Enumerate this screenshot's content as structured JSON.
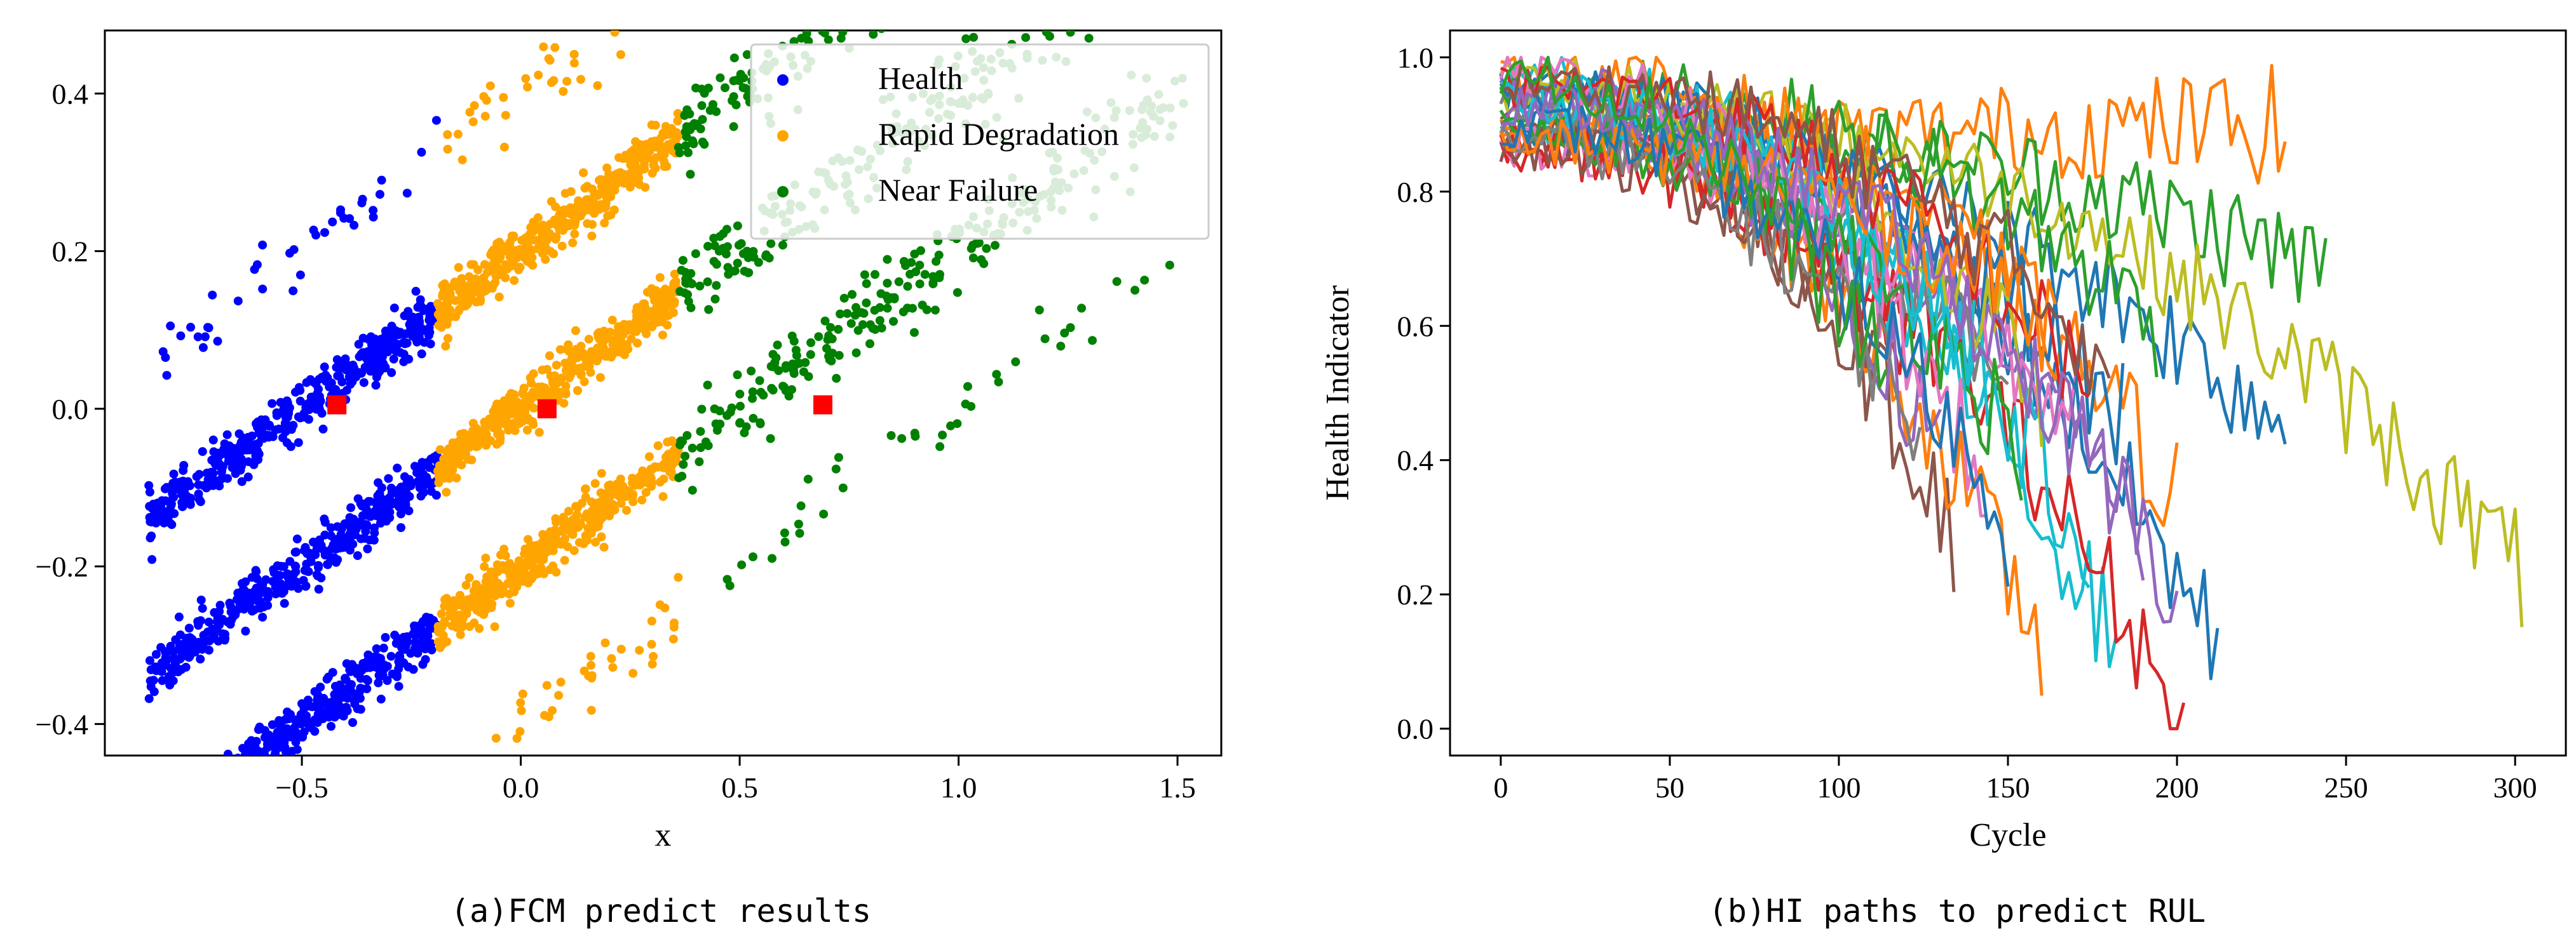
{
  "figure": {
    "captions": [
      "(a)FCM predict results",
      "(b)HI paths to predict RUL"
    ]
  },
  "chart_data": [
    {
      "type": "scatter",
      "xlabel": "x",
      "ylabel": "",
      "xlim": [
        -0.95,
        1.6
      ],
      "ylim": [
        -0.44,
        0.48
      ],
      "xticks": [
        -0.5,
        0.0,
        0.5,
        1.0,
        1.5
      ],
      "yticks": [
        -0.4,
        -0.2,
        0.0,
        0.2,
        0.4
      ],
      "xtick_labels": [
        "−0.5",
        "0.0",
        "0.5",
        "1.0",
        "1.5"
      ],
      "ytick_labels": [
        "−0.4",
        "−0.2",
        "0.0",
        "0.2",
        "0.4"
      ],
      "grid": false,
      "legend": {
        "placement": "top-right"
      },
      "series": [
        {
          "name": "Health",
          "color": "#0000ff",
          "x_range": [
            -0.85,
            -0.19
          ]
        },
        {
          "name": "Rapid Degradation",
          "color": "#ffa500",
          "x_range": [
            -0.19,
            0.36
          ]
        },
        {
          "name": "Near Failure",
          "color": "#008000",
          "x_range": [
            0.36,
            1.52
          ]
        }
      ],
      "stripes": [
        {
          "y_intercept": 0.2,
          "slope": 0.4,
          "spread": 0.012
        },
        {
          "y_intercept": 0.0,
          "slope": 0.4,
          "spread": 0.012
        },
        {
          "y_intercept": -0.2,
          "slope": 0.4,
          "spread": 0.012
        }
      ],
      "centers": {
        "color": "#ff0000",
        "points": [
          {
            "x": -0.42,
            "y": 0.005
          },
          {
            "x": 0.06,
            "y": 0.0
          },
          {
            "x": 0.69,
            "y": 0.005
          }
        ]
      }
    },
    {
      "type": "line",
      "xlabel": "Cycle",
      "ylabel": "Health Indicator",
      "xlim": [
        -15,
        315
      ],
      "ylim": [
        -0.04,
        1.04
      ],
      "xticks": [
        0,
        50,
        100,
        150,
        200,
        250,
        300
      ],
      "yticks": [
        0.0,
        0.2,
        0.4,
        0.6,
        0.8,
        1.0
      ],
      "xtick_labels": [
        "0",
        "50",
        "100",
        "150",
        "200",
        "250",
        "300"
      ],
      "ytick_labels": [
        "0.0",
        "0.2",
        "0.4",
        "0.6",
        "0.8",
        "1.0"
      ],
      "grid": false,
      "palette": [
        "#1f77b4",
        "#ff7f0e",
        "#2ca02c",
        "#d62728",
        "#9467bd",
        "#8c564b",
        "#e377c2",
        "#7f7f7f",
        "#bcbd22",
        "#17becf"
      ],
      "series": [
        {
          "color": "#8c564b",
          "end_cycle": 135,
          "end_hi": 0.28
        },
        {
          "color": "#ff7f0e",
          "end_cycle": 160,
          "end_hi": 0.12
        },
        {
          "color": "#17becf",
          "end_cycle": 182,
          "end_hi": 0.12
        },
        {
          "color": "#d62728",
          "end_cycle": 202,
          "end_hi": 0.0
        },
        {
          "color": "#1f77b4",
          "end_cycle": 212,
          "end_hi": 0.12
        },
        {
          "color": "#1f77b4",
          "end_cycle": 232,
          "end_hi": 0.45
        },
        {
          "color": "#ff7f0e",
          "end_cycle": 232,
          "end_hi": 0.9
        },
        {
          "color": "#2ca02c",
          "end_cycle": 244,
          "end_hi": 0.68
        },
        {
          "color": "#bcbd22",
          "end_cycle": 302,
          "end_hi": 0.23
        },
        {
          "color": "#9467bd",
          "end_cycle": 190,
          "end_hi": 0.3
        },
        {
          "color": "#e377c2",
          "end_cycle": 170,
          "end_hi": 0.45
        },
        {
          "color": "#7f7f7f",
          "end_cycle": 150,
          "end_hi": 0.5
        },
        {
          "color": "#2ca02c",
          "end_cycle": 195,
          "end_hi": 0.6
        },
        {
          "color": "#d62728",
          "end_cycle": 120,
          "end_hi": 0.55
        },
        {
          "color": "#17becf",
          "end_cycle": 175,
          "end_hi": 0.25
        },
        {
          "color": "#8c564b",
          "end_cycle": 110,
          "end_hi": 0.6
        },
        {
          "color": "#ff7f0e",
          "end_cycle": 200,
          "end_hi": 0.35
        },
        {
          "color": "#9467bd",
          "end_cycle": 130,
          "end_hi": 0.4
        },
        {
          "color": "#1f77b4",
          "end_cycle": 185,
          "end_hi": 0.45
        },
        {
          "color": "#bcbd22",
          "end_cycle": 160,
          "end_hi": 0.5
        },
        {
          "color": "#e377c2",
          "end_cycle": 145,
          "end_hi": 0.35
        },
        {
          "color": "#2ca02c",
          "end_cycle": 155,
          "end_hi": 0.42
        },
        {
          "color": "#d62728",
          "end_cycle": 175,
          "end_hi": 0.5
        },
        {
          "color": "#7f7f7f",
          "end_cycle": 125,
          "end_hi": 0.45
        },
        {
          "color": "#17becf",
          "end_cycle": 140,
          "end_hi": 0.55
        },
        {
          "color": "#ff7f0e",
          "end_cycle": 165,
          "end_hi": 0.6
        },
        {
          "color": "#1f77b4",
          "end_cycle": 150,
          "end_hi": 0.3
        },
        {
          "color": "#9467bd",
          "end_cycle": 200,
          "end_hi": 0.2
        },
        {
          "color": "#8c564b",
          "end_cycle": 180,
          "end_hi": 0.55
        },
        {
          "color": "#2ca02c",
          "end_cycle": 115,
          "end_hi": 0.5
        }
      ]
    }
  ]
}
